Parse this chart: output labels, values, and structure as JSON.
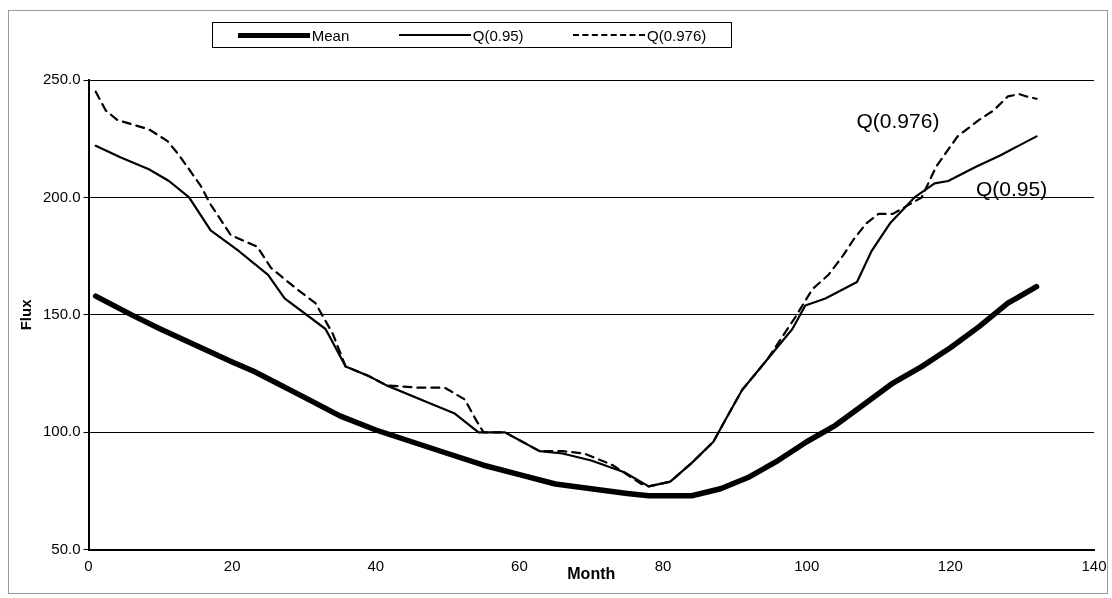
{
  "chart_data": {
    "type": "line",
    "xlabel": "Month",
    "ylabel": "Flux",
    "xlim": [
      0,
      140
    ],
    "xticks": [
      0,
      20,
      40,
      60,
      80,
      100,
      120,
      140
    ],
    "ylim": [
      50,
      250
    ],
    "yticks": [
      {
        "value": 50,
        "label": "50.0"
      },
      {
        "value": 100,
        "label": "100.0"
      },
      {
        "value": 150,
        "label": "150.0"
      },
      {
        "value": 200,
        "label": "200.0"
      },
      {
        "value": 250,
        "label": "250.0"
      }
    ],
    "grid": "y",
    "legend": "top",
    "marker": "none",
    "annotations": [
      "Q(0.976)",
      "Q(0.95)"
    ],
    "series": [
      {
        "name": "Mean",
        "color": "#000000",
        "line_style": "solid",
        "x": [
          1,
          6,
          10,
          15,
          20,
          23,
          30,
          35,
          40,
          45,
          50,
          55,
          60,
          65,
          70,
          75,
          78,
          84,
          88,
          92,
          96,
          100,
          104,
          108,
          112,
          116,
          120,
          124,
          128,
          132
        ],
        "values": [
          158,
          150,
          144,
          137,
          130,
          126,
          115,
          107,
          101,
          96,
          91,
          86,
          82,
          78,
          76,
          74,
          73,
          73,
          76,
          81,
          88,
          96,
          103,
          112,
          121,
          128,
          136,
          145,
          155,
          162
        ]
      },
      {
        "name": "Q(0.95)",
        "color": "#000000",
        "line_style": "solid",
        "x": [
          1,
          4.5,
          8.4,
          11.2,
          14,
          17,
          21,
          25,
          27.3,
          33,
          35.8,
          39,
          41.5,
          47,
          51,
          54.3,
          58,
          62.8,
          66,
          70,
          74.6,
          78,
          81,
          84,
          87,
          88.8,
          91,
          94.5,
          98,
          99.8,
          102.6,
          107,
          109,
          111.6,
          115,
          117.8,
          119.7,
          123.5,
          127,
          132
        ],
        "values": [
          222,
          217,
          212,
          207,
          200,
          186,
          177,
          167,
          157,
          144,
          128,
          124,
          120,
          113,
          108,
          100,
          100,
          92,
          91,
          88,
          83,
          77,
          79,
          87,
          96,
          106,
          118,
          131,
          144,
          154,
          157,
          164,
          177,
          189,
          200,
          206,
          207,
          213,
          218,
          226
        ]
      },
      {
        "name": "Q(0.976)",
        "color": "#000000",
        "line_style": "dashed",
        "x": [
          1,
          2.4,
          4,
          8.4,
          11,
          12.6,
          14,
          15.6,
          17,
          18.3,
          19.8,
          23.5,
          25.4,
          29,
          31.6,
          34,
          35.8,
          39,
          41.5,
          46,
          49.6,
          52.4,
          54,
          55,
          58,
          62.8,
          66,
          69,
          73,
          77,
          78,
          81,
          84,
          87,
          88.8,
          91,
          94.5,
          98.4,
          100.8,
          103,
          105,
          106.5,
          108.3,
          110,
          112,
          116,
          118,
          121,
          124,
          126,
          128,
          129.6,
          130.6,
          132
        ],
        "values": [
          245,
          237,
          233,
          229,
          224,
          218,
          212,
          205,
          197,
          191,
          184,
          179,
          170,
          161,
          155,
          142,
          128,
          124,
          120,
          119,
          119,
          114,
          105,
          100,
          100,
          92,
          92,
          91,
          86,
          78,
          77,
          79,
          87,
          96,
          106,
          118,
          131,
          149,
          161,
          167,
          175,
          182,
          189,
          193,
          193,
          200,
          213,
          226,
          233,
          237,
          243,
          244,
          243,
          242
        ]
      }
    ]
  }
}
